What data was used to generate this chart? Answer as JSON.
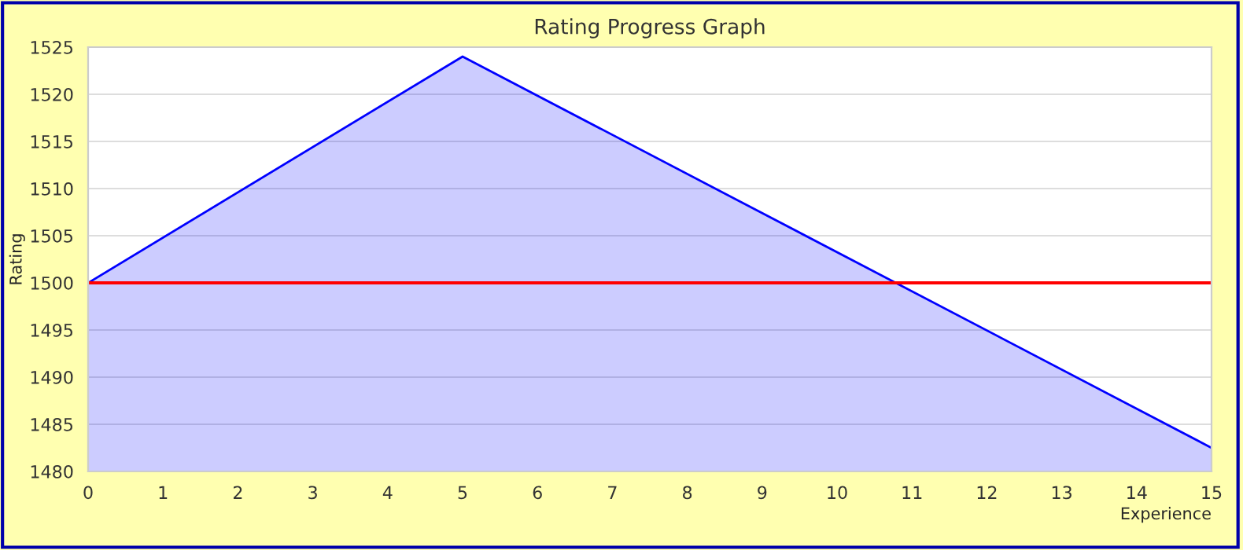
{
  "chart_data": {
    "type": "area",
    "title": "Rating Progress Graph",
    "xlabel": "Experience",
    "ylabel": "Rating",
    "x": [
      0,
      5,
      15
    ],
    "series": [
      {
        "color": "#0000ff",
        "values": [
          1500,
          1524,
          1482.5
        ]
      }
    ],
    "xlim": [
      0,
      15
    ],
    "xticks": [
      0,
      1,
      2,
      3,
      4,
      5,
      6,
      7,
      8,
      9,
      10,
      11,
      12,
      13,
      14,
      15
    ],
    "ylim": [
      1480,
      1525
    ],
    "yticks": [
      1480,
      1485,
      1490,
      1495,
      1500,
      1505,
      1510,
      1515,
      1520,
      1525
    ],
    "ref_lines": [
      {
        "axis": "y",
        "value": 1500,
        "color": "#ff0000"
      }
    ],
    "grid": "y",
    "legend": false
  }
}
